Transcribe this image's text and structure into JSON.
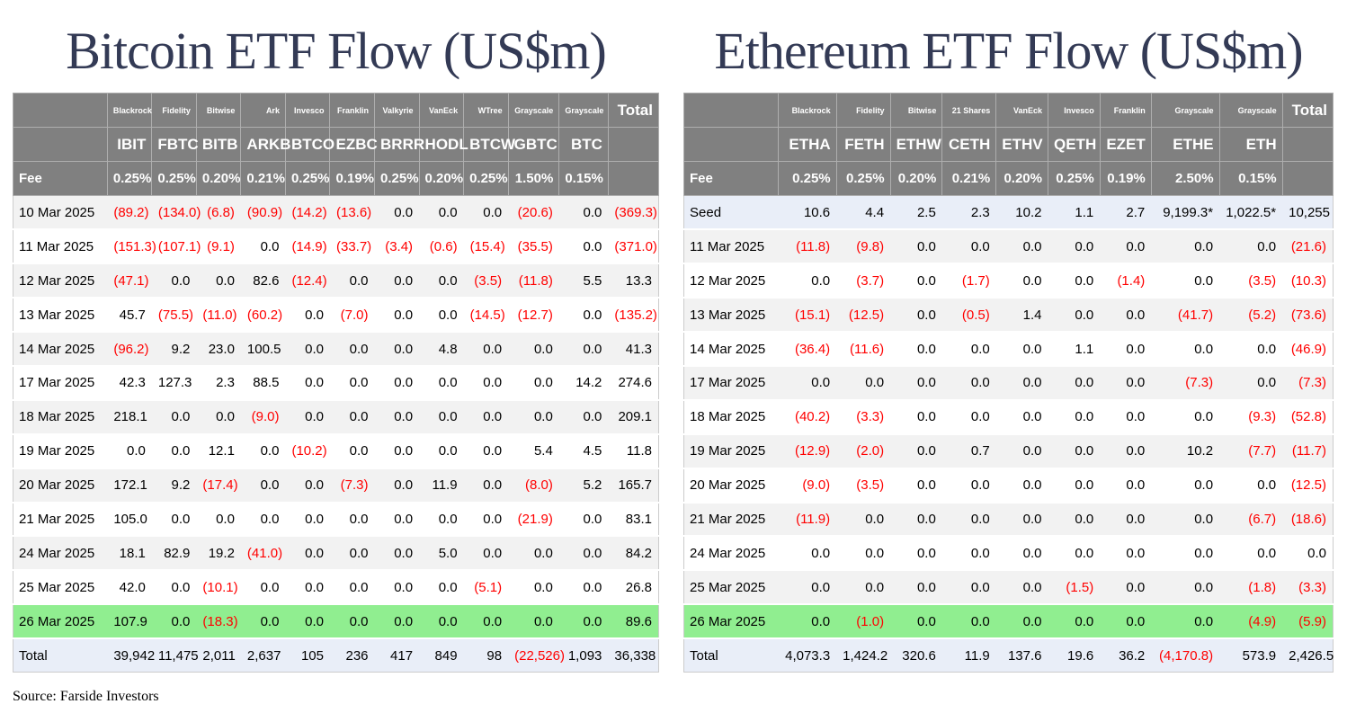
{
  "source_note": "Source: Farside Investors",
  "colors": {
    "header_bg": "#808080",
    "header_text": "#ffffff",
    "row_stripe": "#f2f2f2",
    "green_row": "#90ee90",
    "total_row": "#e9eef8",
    "negative": "#ff0000",
    "title": "#333a55"
  },
  "chart_data": [
    {
      "type": "table",
      "title": "Bitcoin ETF Flow (US$m)",
      "fee_label": "Fee",
      "total_header": "Total",
      "issuers": [
        "Blackrock",
        "Fidelity",
        "Bitwise",
        "Ark",
        "Invesco",
        "Franklin",
        "Valkyrie",
        "VanEck",
        "WTree",
        "Grayscale",
        "Grayscale"
      ],
      "tickers": [
        "IBIT",
        "FBTC",
        "BITB",
        "ARKB",
        "BTCO",
        "EZBC",
        "BRRR",
        "HODL",
        "BTCW",
        "GBTC",
        "BTC"
      ],
      "fees": [
        "0.25%",
        "0.25%",
        "0.20%",
        "0.21%",
        "0.25%",
        "0.19%",
        "0.25%",
        "0.20%",
        "0.25%",
        "1.50%",
        "0.15%"
      ],
      "col_widths": [
        "14.6%",
        "6.9%",
        "6.9%",
        "6.9%",
        "6.9%",
        "6.9%",
        "6.9%",
        "6.9%",
        "6.9%",
        "6.9%",
        "7.9%",
        "7.6%",
        "7.8%"
      ],
      "rows": [
        {
          "label": "10 Mar 2025",
          "shade": "alt",
          "values": [
            "(89.2)",
            "(134.0)",
            "(6.8)",
            "(90.9)",
            "(14.2)",
            "(13.6)",
            "0.0",
            "0.0",
            "0.0",
            "(20.6)",
            "0.0",
            "(369.3)"
          ]
        },
        {
          "label": "11 Mar 2025",
          "shade": "plain",
          "values": [
            "(151.3)",
            "(107.1)",
            "(9.1)",
            "0.0",
            "(14.9)",
            "(33.7)",
            "(3.4)",
            "(0.6)",
            "(15.4)",
            "(35.5)",
            "0.0",
            "(371.0)"
          ]
        },
        {
          "label": "12 Mar 2025",
          "shade": "alt",
          "values": [
            "(47.1)",
            "0.0",
            "0.0",
            "82.6",
            "(12.4)",
            "0.0",
            "0.0",
            "0.0",
            "(3.5)",
            "(11.8)",
            "5.5",
            "13.3"
          ]
        },
        {
          "label": "13 Mar 2025",
          "shade": "plain",
          "values": [
            "45.7",
            "(75.5)",
            "(11.0)",
            "(60.2)",
            "0.0",
            "(7.0)",
            "0.0",
            "0.0",
            "(14.5)",
            "(12.7)",
            "0.0",
            "(135.2)"
          ]
        },
        {
          "label": "14 Mar 2025",
          "shade": "alt",
          "values": [
            "(96.2)",
            "9.2",
            "23.0",
            "100.5",
            "0.0",
            "0.0",
            "0.0",
            "4.8",
            "0.0",
            "0.0",
            "0.0",
            "41.3"
          ]
        },
        {
          "label": "17 Mar 2025",
          "shade": "plain",
          "values": [
            "42.3",
            "127.3",
            "2.3",
            "88.5",
            "0.0",
            "0.0",
            "0.0",
            "0.0",
            "0.0",
            "0.0",
            "14.2",
            "274.6"
          ]
        },
        {
          "label": "18 Mar 2025",
          "shade": "alt",
          "values": [
            "218.1",
            "0.0",
            "0.0",
            "(9.0)",
            "0.0",
            "0.0",
            "0.0",
            "0.0",
            "0.0",
            "0.0",
            "0.0",
            "209.1"
          ]
        },
        {
          "label": "19 Mar 2025",
          "shade": "plain",
          "values": [
            "0.0",
            "0.0",
            "12.1",
            "0.0",
            "(10.2)",
            "0.0",
            "0.0",
            "0.0",
            "0.0",
            "5.4",
            "4.5",
            "11.8"
          ]
        },
        {
          "label": "20 Mar 2025",
          "shade": "alt",
          "values": [
            "172.1",
            "9.2",
            "(17.4)",
            "0.0",
            "0.0",
            "(7.3)",
            "0.0",
            "11.9",
            "0.0",
            "(8.0)",
            "5.2",
            "165.7"
          ]
        },
        {
          "label": "21 Mar 2025",
          "shade": "plain",
          "values": [
            "105.0",
            "0.0",
            "0.0",
            "0.0",
            "0.0",
            "0.0",
            "0.0",
            "0.0",
            "0.0",
            "(21.9)",
            "0.0",
            "83.1"
          ]
        },
        {
          "label": "24 Mar 2025",
          "shade": "alt",
          "values": [
            "18.1",
            "82.9",
            "19.2",
            "(41.0)",
            "0.0",
            "0.0",
            "0.0",
            "5.0",
            "0.0",
            "0.0",
            "0.0",
            "84.2"
          ]
        },
        {
          "label": "25 Mar 2025",
          "shade": "plain",
          "values": [
            "42.0",
            "0.0",
            "(10.1)",
            "0.0",
            "0.0",
            "0.0",
            "0.0",
            "0.0",
            "(5.1)",
            "0.0",
            "0.0",
            "26.8"
          ]
        },
        {
          "label": "26 Mar 2025",
          "shade": "green",
          "values": [
            "107.9",
            "0.0",
            "(18.3)",
            "0.0",
            "0.0",
            "0.0",
            "0.0",
            "0.0",
            "0.0",
            "0.0",
            "0.0",
            "89.6"
          ]
        },
        {
          "label": "Total",
          "shade": "blue",
          "values": [
            "39,942",
            "11,475",
            "2,011",
            "2,637",
            "105",
            "236",
            "417",
            "849",
            "98",
            "(22,526)",
            "1,093",
            "36,338"
          ]
        }
      ]
    },
    {
      "type": "table",
      "title": "Ethereum ETF Flow (US$m)",
      "fee_label": "Fee",
      "total_header": "Total",
      "issuers": [
        "Blackrock",
        "Fidelity",
        "Bitwise",
        "21 Shares",
        "VanEck",
        "Invesco",
        "Franklin",
        "Grayscale",
        "Grayscale"
      ],
      "tickers": [
        "ETHA",
        "FETH",
        "ETHW",
        "CETH",
        "ETHV",
        "QETH",
        "EZET",
        "ETHE",
        "ETH"
      ],
      "fees": [
        "0.25%",
        "0.25%",
        "0.20%",
        "0.21%",
        "0.20%",
        "0.25%",
        "0.19%",
        "2.50%",
        "0.15%"
      ],
      "col_widths": [
        "14.5%",
        "9.0%",
        "8.3%",
        "8.0%",
        "8.3%",
        "8.0%",
        "8.0%",
        "7.9%",
        "10.5%",
        "9.7%",
        "7.8%"
      ],
      "rows": [
        {
          "label": "Seed",
          "shade": "blue",
          "values": [
            "10.6",
            "4.4",
            "2.5",
            "2.3",
            "10.2",
            "1.1",
            "2.7",
            "9,199.3*",
            "1,022.5*",
            "10,255"
          ]
        },
        {
          "label": "11 Mar 2025",
          "shade": "alt",
          "values": [
            "(11.8)",
            "(9.8)",
            "0.0",
            "0.0",
            "0.0",
            "0.0",
            "0.0",
            "0.0",
            "0.0",
            "(21.6)"
          ]
        },
        {
          "label": "12 Mar 2025",
          "shade": "plain",
          "values": [
            "0.0",
            "(3.7)",
            "0.0",
            "(1.7)",
            "0.0",
            "0.0",
            "(1.4)",
            "0.0",
            "(3.5)",
            "(10.3)"
          ]
        },
        {
          "label": "13 Mar 2025",
          "shade": "alt",
          "values": [
            "(15.1)",
            "(12.5)",
            "0.0",
            "(0.5)",
            "1.4",
            "0.0",
            "0.0",
            "(41.7)",
            "(5.2)",
            "(73.6)"
          ]
        },
        {
          "label": "14 Mar 2025",
          "shade": "plain",
          "values": [
            "(36.4)",
            "(11.6)",
            "0.0",
            "0.0",
            "0.0",
            "1.1",
            "0.0",
            "0.0",
            "0.0",
            "(46.9)"
          ]
        },
        {
          "label": "17 Mar 2025",
          "shade": "alt",
          "values": [
            "0.0",
            "0.0",
            "0.0",
            "0.0",
            "0.0",
            "0.0",
            "0.0",
            "(7.3)",
            "0.0",
            "(7.3)"
          ]
        },
        {
          "label": "18 Mar 2025",
          "shade": "plain",
          "values": [
            "(40.2)",
            "(3.3)",
            "0.0",
            "0.0",
            "0.0",
            "0.0",
            "0.0",
            "0.0",
            "(9.3)",
            "(52.8)"
          ]
        },
        {
          "label": "19 Mar 2025",
          "shade": "alt",
          "values": [
            "(12.9)",
            "(2.0)",
            "0.0",
            "0.7",
            "0.0",
            "0.0",
            "0.0",
            "10.2",
            "(7.7)",
            "(11.7)"
          ]
        },
        {
          "label": "20 Mar 2025",
          "shade": "plain",
          "values": [
            "(9.0)",
            "(3.5)",
            "0.0",
            "0.0",
            "0.0",
            "0.0",
            "0.0",
            "0.0",
            "0.0",
            "(12.5)"
          ]
        },
        {
          "label": "21 Mar 2025",
          "shade": "alt",
          "values": [
            "(11.9)",
            "0.0",
            "0.0",
            "0.0",
            "0.0",
            "0.0",
            "0.0",
            "0.0",
            "(6.7)",
            "(18.6)"
          ]
        },
        {
          "label": "24 Mar 2025",
          "shade": "plain",
          "values": [
            "0.0",
            "0.0",
            "0.0",
            "0.0",
            "0.0",
            "0.0",
            "0.0",
            "0.0",
            "0.0",
            "0.0"
          ]
        },
        {
          "label": "25 Mar 2025",
          "shade": "alt",
          "values": [
            "0.0",
            "0.0",
            "0.0",
            "0.0",
            "0.0",
            "(1.5)",
            "0.0",
            "0.0",
            "(1.8)",
            "(3.3)"
          ]
        },
        {
          "label": "26 Mar 2025",
          "shade": "green",
          "values": [
            "0.0",
            "(1.0)",
            "0.0",
            "0.0",
            "0.0",
            "0.0",
            "0.0",
            "0.0",
            "(4.9)",
            "(5.9)"
          ]
        },
        {
          "label": "Total",
          "shade": "blue",
          "values": [
            "4,073.3",
            "1,424.2",
            "320.6",
            "11.9",
            "137.6",
            "19.6",
            "36.2",
            "(4,170.8)",
            "573.9",
            "2,426.5"
          ]
        }
      ]
    }
  ]
}
